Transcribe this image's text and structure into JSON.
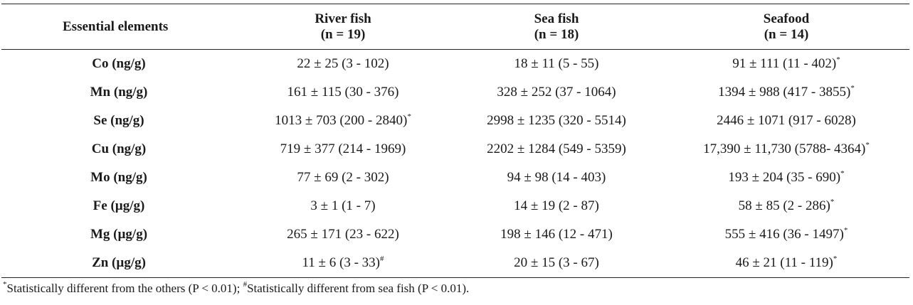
{
  "table": {
    "headers": [
      {
        "label": "Essential elements",
        "sub": ""
      },
      {
        "label": "River fish",
        "sub": "(n = 19)"
      },
      {
        "label": "Sea fish",
        "sub": "(n = 18)"
      },
      {
        "label": "Seafood",
        "sub": "(n = 14)"
      }
    ],
    "rows": [
      {
        "element": "Co (ng/g)",
        "river": "22 ± 25 (3 - 102)",
        "river_mark": "",
        "sea": "18 ± 11 (5 - 55)",
        "sea_mark": "",
        "seafood": "91 ± 111 (11 - 402)",
        "seafood_mark": "*"
      },
      {
        "element": "Mn (ng/g)",
        "river": "161 ± 115 (30 - 376)",
        "river_mark": "",
        "sea": "328 ± 252 (37 - 1064)",
        "sea_mark": "",
        "seafood": "1394 ± 988 (417 - 3855)",
        "seafood_mark": "*"
      },
      {
        "element": "Se (ng/g)",
        "river": "1013 ± 703 (200 - 2840)",
        "river_mark": "*",
        "sea": "2998 ± 1235 (320 - 5514)",
        "sea_mark": "",
        "seafood": "2446 ± 1071 (917 - 6028)",
        "seafood_mark": ""
      },
      {
        "element": "Cu (ng/g)",
        "river": "719 ± 377 (214 - 1969)",
        "river_mark": "",
        "sea": "2202 ± 1284 (549 - 5359)",
        "sea_mark": "",
        "seafood": "17,390 ± 11,730 (5788- 4364)",
        "seafood_mark": "*"
      },
      {
        "element": "Mo (ng/g)",
        "river": "77 ± 69 (2 - 302)",
        "river_mark": "",
        "sea": "94 ± 98 (14 - 403)",
        "sea_mark": "",
        "seafood": "193 ± 204 (35 - 690)",
        "seafood_mark": "*"
      },
      {
        "element": "Fe (µg/g)",
        "river": "3 ± 1 (1 - 7)",
        "river_mark": "",
        "sea": "14 ± 19 (2 - 87)",
        "sea_mark": "",
        "seafood": "58 ± 85 (2 - 286)",
        "seafood_mark": "*"
      },
      {
        "element": "Mg (µg/g)",
        "river": "265 ± 171 (23 - 622)",
        "river_mark": "",
        "sea": "198 ± 146 (12 - 471)",
        "sea_mark": "",
        "seafood": "555 ± 416 (36 - 1497)",
        "seafood_mark": "*"
      },
      {
        "element": "Zn (µg/g)",
        "river": "11 ± 6 (3 - 33)",
        "river_mark": "#",
        "sea": "20 ± 15 (3 - 67)",
        "sea_mark": "",
        "seafood": "46 ± 21 (11 - 119)",
        "seafood_mark": "*"
      }
    ]
  },
  "footnote": {
    "mark1": "*",
    "text1": "Statistically different from the others (P < 0.01); ",
    "mark2": "#",
    "text2": "Statistically different from sea fish (P < 0.01)."
  }
}
